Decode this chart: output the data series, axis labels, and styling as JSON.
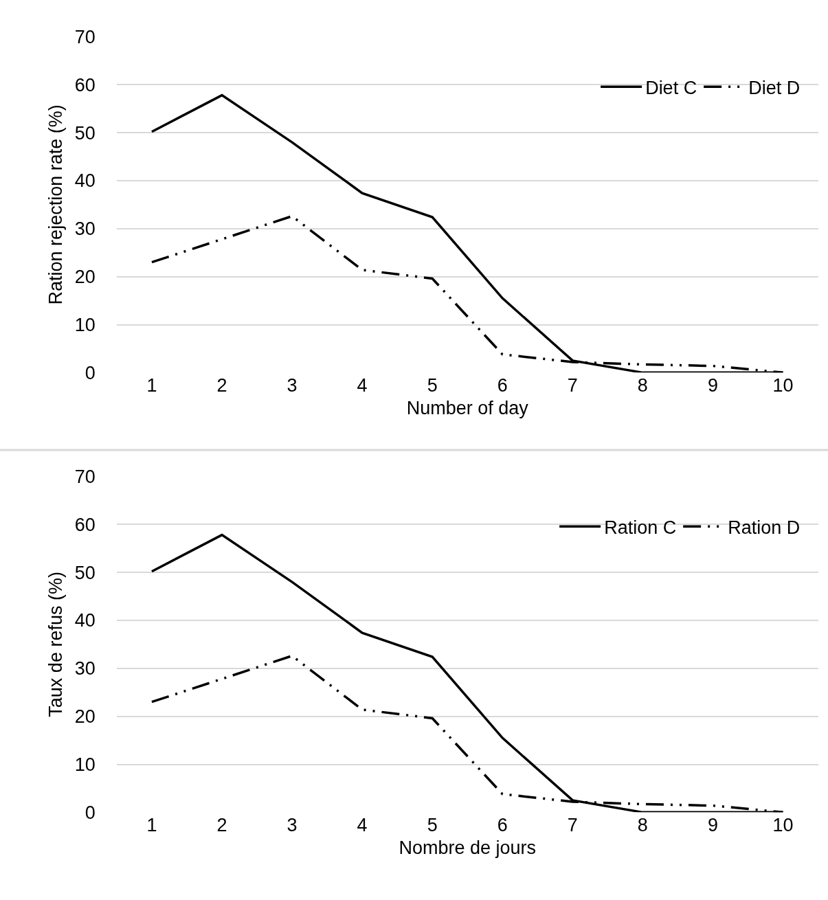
{
  "chart_data": [
    {
      "type": "line",
      "xlabel": "Number of day",
      "ylabel": "Ration rejection rate (%)",
      "categories": [
        "1",
        "2",
        "3",
        "4",
        "5",
        "6",
        "7",
        "8",
        "9",
        "10"
      ],
      "ylim": [
        0,
        70
      ],
      "yticks": [
        0,
        10,
        20,
        30,
        40,
        50,
        60,
        70
      ],
      "grid": "y",
      "legend": "top right",
      "series": [
        {
          "name": "Diet C",
          "color": "#000000",
          "line_style": "solid",
          "values": [
            50.2,
            57.8,
            48,
            37.4,
            32.4,
            15.5,
            2.5,
            0,
            0,
            0
          ]
        },
        {
          "name": "Diet D",
          "color": "#000000",
          "line_style": "dashed",
          "values": [
            23,
            27.8,
            32.6,
            21.4,
            19.6,
            3.8,
            2.2,
            1.7,
            1.4,
            0
          ]
        }
      ]
    },
    {
      "type": "line",
      "xlabel": "Nombre de jours",
      "ylabel": "Taux de refus (%)",
      "categories": [
        "1",
        "2",
        "3",
        "4",
        "5",
        "6",
        "7",
        "8",
        "9",
        "10"
      ],
      "ylim": [
        0,
        70
      ],
      "yticks": [
        0,
        10,
        20,
        30,
        40,
        50,
        60,
        70
      ],
      "grid": "y",
      "legend": "top right",
      "series": [
        {
          "name": "Ration C",
          "color": "#000000",
          "line_style": "solid",
          "values": [
            50.2,
            57.8,
            48,
            37.4,
            32.4,
            15.5,
            2.5,
            0,
            0,
            0
          ]
        },
        {
          "name": "Ration D",
          "color": "#000000",
          "line_style": "dashed",
          "values": [
            23,
            27.8,
            32.6,
            21.4,
            19.6,
            3.8,
            2.2,
            1.7,
            1.4,
            0
          ]
        }
      ]
    }
  ]
}
